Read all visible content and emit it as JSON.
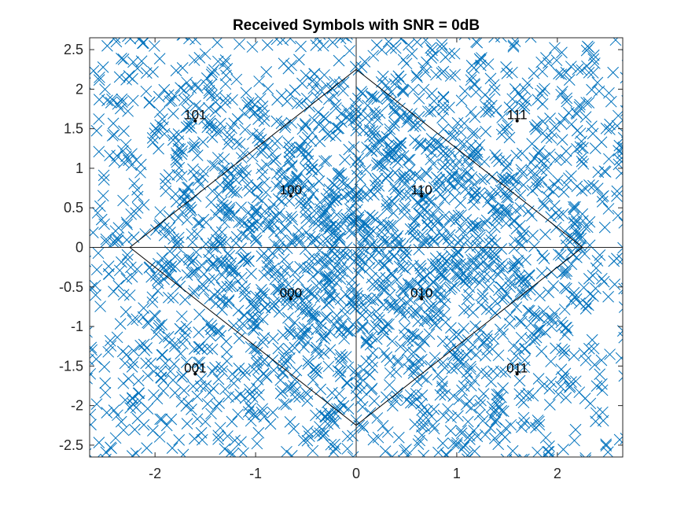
{
  "chart_data": {
    "type": "scatter",
    "title": "Received Symbols with SNR = 0dB",
    "xlabel": "",
    "ylabel": "",
    "xlim": [
      -2.65,
      2.65
    ],
    "ylim": [
      -2.65,
      2.65
    ],
    "xticks": [
      -2,
      -1,
      0,
      1,
      2
    ],
    "xtick_labels": [
      "-2",
      "-1",
      "0",
      "1",
      "2"
    ],
    "yticks": [
      2.5,
      2,
      1.5,
      1,
      0.5,
      0,
      -0.5,
      -1,
      -1.5,
      -2,
      -2.5
    ],
    "ytick_labels": [
      "2.5",
      "2",
      "1.5",
      "1",
      "0.5",
      "0",
      "-0.5",
      "-1",
      "-1.5",
      "-2",
      "-2.5"
    ],
    "grid": false,
    "legend": "none",
    "marker": "x",
    "marker_color": "#0072BD",
    "received_symbols": {
      "count": 3200,
      "noise_sigma": 1.15,
      "clip": 2.65,
      "description_note": "noisy points centred on the constellation symbols"
    },
    "constellation": [
      {
        "label": "101",
        "x": -1.6,
        "y": 1.6
      },
      {
        "label": "111",
        "x": 1.6,
        "y": 1.6
      },
      {
        "label": "100",
        "x": -0.65,
        "y": 0.65
      },
      {
        "label": "110",
        "x": 0.65,
        "y": 0.65
      },
      {
        "label": "000",
        "x": -0.65,
        "y": -0.65
      },
      {
        "label": "010",
        "x": 0.65,
        "y": -0.65
      },
      {
        "label": "001",
        "x": -1.6,
        "y": -1.6
      },
      {
        "label": "011",
        "x": 1.6,
        "y": -1.6
      }
    ],
    "decision_boundary": [
      [
        0,
        2.25
      ],
      [
        2.25,
        0
      ],
      [
        0,
        -2.25
      ],
      [
        -2.25,
        0
      ],
      [
        0,
        2.25
      ]
    ],
    "axis_lines": {
      "horizontal_y": 0,
      "vertical_x": 0
    }
  }
}
